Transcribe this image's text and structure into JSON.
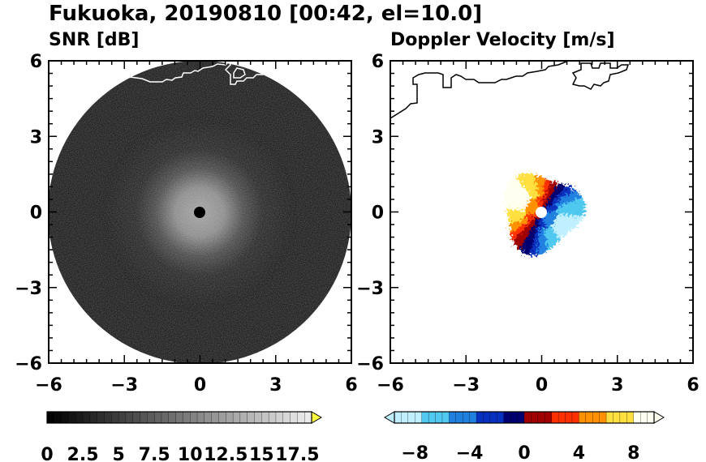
{
  "figure": {
    "title": "Fukuoka, 20190810 [00:42, el=10.0]"
  },
  "chart_data": [
    {
      "type": "heatmap",
      "title": "SNR [dB]",
      "projection": "polar PPI scan shown on cartesian axes",
      "xlim": [
        -6,
        6
      ],
      "ylim": [
        -6,
        6
      ],
      "x_ticks": [
        -6,
        -3,
        0,
        3,
        6
      ],
      "y_ticks": [
        6,
        3,
        0,
        -3,
        -6
      ],
      "scan_radius": 6.0,
      "center_blanking_radius": 0.22,
      "field_description": "noise-level SNR over full scan; brighter grey speckle within radius ~3 around radar",
      "colorbar": {
        "min": 0,
        "max": 18.5,
        "extend": "max",
        "ticks": [
          "0",
          "2.5",
          "5",
          "7.5",
          "10",
          "12.5",
          "15",
          "17.5"
        ],
        "colors": [
          "#000000",
          "#ffffff"
        ],
        "extend_color": "#ffff40"
      },
      "coastline_color": "#ffffff"
    },
    {
      "type": "heatmap",
      "title": "Doppler Velocity [m/s]",
      "xlim": [
        -6,
        6
      ],
      "ylim": [
        -6,
        6
      ],
      "x_ticks": [
        -6,
        -3,
        0,
        3,
        6
      ],
      "y_ticks": [
        6,
        3,
        0,
        -3,
        -6
      ],
      "echo_radius": 1.8,
      "center_blanking_radius": 0.22,
      "field_description": "toward (blue) in SE half, away (red/yellow) in NW half",
      "colorbar": {
        "min": -9.5,
        "max": 9.5,
        "extend": "both",
        "ticks": [
          "−8",
          "−4",
          "0",
          "4",
          "8"
        ],
        "tick_values": [
          -8,
          -4,
          0,
          4,
          8
        ],
        "colors": [
          "#c0f0ff",
          "#50c8f0",
          "#2080e0",
          "#0830c0",
          "#000070",
          "#a00000",
          "#ff3000",
          "#ff9000",
          "#ffe040",
          "#fffff0"
        ]
      },
      "coastline_color": "#000000"
    }
  ]
}
